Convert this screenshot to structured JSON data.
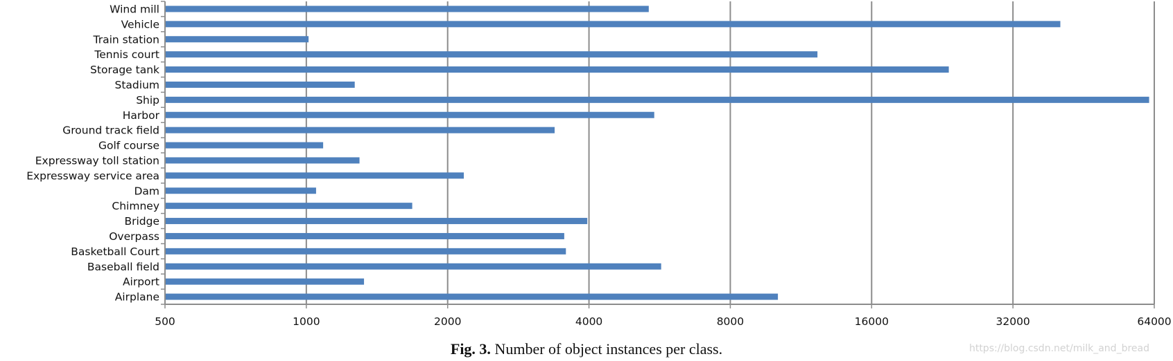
{
  "chart_data": {
    "type": "bar",
    "orientation": "horizontal",
    "scale": "log2",
    "categories": [
      "Wind mill",
      "Vehicle",
      "Train station",
      "Tennis court",
      "Storage tank",
      "Stadium",
      "Ship",
      "Harbor",
      "Ground track field",
      "Golf course",
      "Expressway toll station",
      "Expressway service area",
      "Dam",
      "Chimney",
      "Bridge",
      "Overpass",
      "Basketball Court",
      "Baseball field",
      "Airport",
      "Airplane"
    ],
    "values": [
      5363,
      40370,
      1011,
      12266,
      23361,
      1268,
      62400,
      5509,
      3380,
      1086,
      1298,
      2165,
      1049,
      1681,
      3967,
      3543,
      3572,
      5699,
      1327,
      10104
    ],
    "xticks": [
      "500",
      "1000",
      "2000",
      "4000",
      "8000",
      "16000",
      "32000",
      "64000"
    ],
    "xlim": [
      500,
      64000
    ],
    "grid": "vertical",
    "bar_color": "#4f81bd",
    "grid_color": "#8c8c8c"
  },
  "caption": {
    "label": "Fig. 3.",
    "text": "Number of object instances per class."
  },
  "watermark": "https://blog.csdn.net/milk_and_bread"
}
